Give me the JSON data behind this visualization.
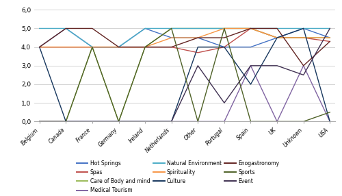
{
  "categories": [
    "Belgium",
    "Canada",
    "France",
    "Germany",
    "Ireland",
    "Netherlands",
    "Other",
    "Portugal",
    "Spain",
    "UK",
    "Unknown",
    "USA"
  ],
  "series": {
    "Hot Springs": {
      "values": [
        4.0,
        5.0,
        4.0,
        4.0,
        5.0,
        4.5,
        4.5,
        4.0,
        4.0,
        4.5,
        5.0,
        4.5
      ],
      "color": "#4472C4"
    },
    "Spas": {
      "values": [
        4.0,
        4.0,
        4.0,
        4.0,
        4.0,
        4.0,
        3.7,
        4.0,
        5.0,
        4.5,
        4.5,
        4.3
      ],
      "color": "#C0504D"
    },
    "Care of Body and mind": {
      "values": [
        0.0,
        0.0,
        4.0,
        0.0,
        4.0,
        5.0,
        5.0,
        5.0,
        5.0,
        4.5,
        4.5,
        4.5
      ],
      "color": "#9BBB59"
    },
    "Medical Tourism": {
      "values": [
        0.0,
        0.0,
        0.0,
        0.0,
        0.0,
        0.0,
        0.0,
        0.0,
        3.0,
        0.0,
        3.0,
        0.0
      ],
      "color": "#8064A2"
    },
    "Natural Environment": {
      "values": [
        5.0,
        5.0,
        4.0,
        4.0,
        5.0,
        5.0,
        5.0,
        5.0,
        5.0,
        5.0,
        5.0,
        5.0
      ],
      "color": "#4BACC6"
    },
    "Spirituality": {
      "values": [
        4.0,
        4.0,
        4.0,
        4.0,
        4.0,
        4.5,
        4.5,
        5.0,
        5.0,
        4.5,
        4.5,
        4.5
      ],
      "color": "#F79646"
    },
    "Culture": {
      "values": [
        4.0,
        0.0,
        0.0,
        0.0,
        0.0,
        0.0,
        4.0,
        4.0,
        2.0,
        4.5,
        5.0,
        0.0
      ],
      "color": "#17375E"
    },
    "Enogastronomy": {
      "values": [
        4.0,
        5.0,
        5.0,
        4.0,
        4.0,
        4.0,
        4.5,
        4.5,
        5.0,
        5.0,
        3.0,
        4.3
      ],
      "color": "#632523"
    },
    "Sports": {
      "values": [
        0.0,
        0.0,
        4.0,
        0.0,
        4.0,
        5.0,
        0.0,
        5.0,
        0.0,
        0.0,
        0.0,
        0.5
      ],
      "color": "#4F6228"
    },
    "Event": {
      "values": [
        0.0,
        0.0,
        0.0,
        0.0,
        0.0,
        0.0,
        3.0,
        1.0,
        3.0,
        3.0,
        2.5,
        5.0
      ],
      "color": "#403152"
    }
  },
  "ylim": [
    0.0,
    6.0
  ],
  "yticks": [
    0.0,
    1.0,
    2.0,
    3.0,
    4.0,
    5.0,
    6.0
  ],
  "ytick_labels": [
    "0,0",
    "1,0",
    "2,0",
    "3,0",
    "4,0",
    "5,0",
    "6,0"
  ],
  "legend_order": [
    "Hot Springs",
    "Spas",
    "Care of Body and mind",
    "Medical Tourism",
    "Natural Environment",
    "Spirituality",
    "Culture",
    "Enogastronomy",
    "Sports",
    "Event"
  ],
  "fig_width": 5.0,
  "fig_height": 2.86,
  "background_color": "#FFFFFF"
}
